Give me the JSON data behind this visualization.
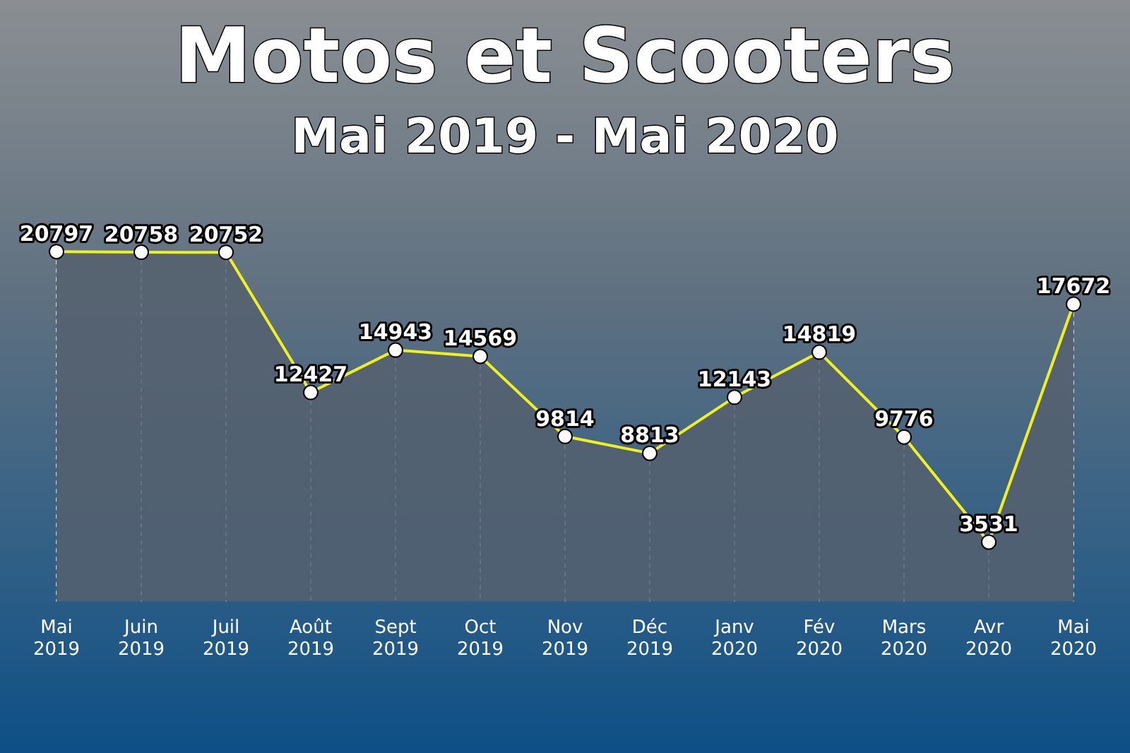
{
  "chart_data": {
    "type": "area",
    "title": "Motos et Scooters",
    "subtitle": "Mai 2019 - Mai 2020",
    "categories": [
      "Mai 2019",
      "Juin 2019",
      "Juil 2019",
      "Août 2019",
      "Sept 2019",
      "Oct 2019",
      "Nov 2019",
      "Déc 2019",
      "Janv 2020",
      "Fév 2020",
      "Mars 2020",
      "Avr 2020",
      "Mai 2020"
    ],
    "series": [
      {
        "color": "#f0f020",
        "values": [
          20797,
          20758,
          20752,
          12427,
          14943,
          14569,
          9814,
          8813,
          12143,
          14819,
          9776,
          3531,
          17672
        ]
      }
    ],
    "data_labels": true,
    "grid": "x",
    "marker": "circle",
    "legend": false
  }
}
